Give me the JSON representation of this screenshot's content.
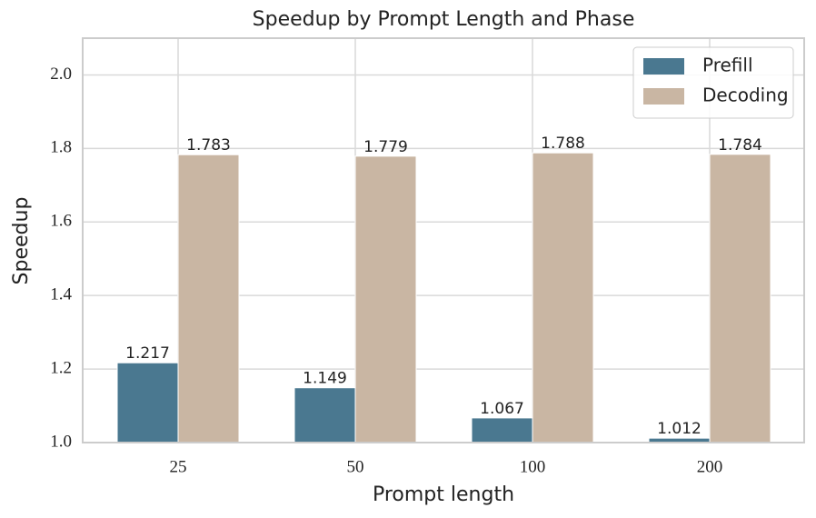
{
  "chart_data": {
    "type": "bar",
    "title": "Speedup by Prompt Length and Phase",
    "x_label": "Prompt length",
    "y_label": "Speedup",
    "categories": [
      "25",
      "50",
      "100",
      "200"
    ],
    "series": [
      {
        "name": "Prefill",
        "color": "#4a7890",
        "values": [
          1.217,
          1.149,
          1.067,
          1.012
        ]
      },
      {
        "name": "Decoding",
        "color": "#c9b6a3",
        "values": [
          1.783,
          1.779,
          1.788,
          1.784
        ]
      }
    ],
    "ylim": [
      1.0,
      2.1
    ],
    "yticks": [
      {
        "value": 1.0,
        "label": "1.0"
      },
      {
        "value": 1.2,
        "label": "1.2"
      },
      {
        "value": 1.4,
        "label": "1.4"
      },
      {
        "value": 1.6,
        "label": "1.6"
      },
      {
        "value": 1.8,
        "label": "1.8"
      },
      {
        "value": 2.0,
        "label": "2.0"
      }
    ],
    "grid": true,
    "legend": "upper right"
  }
}
